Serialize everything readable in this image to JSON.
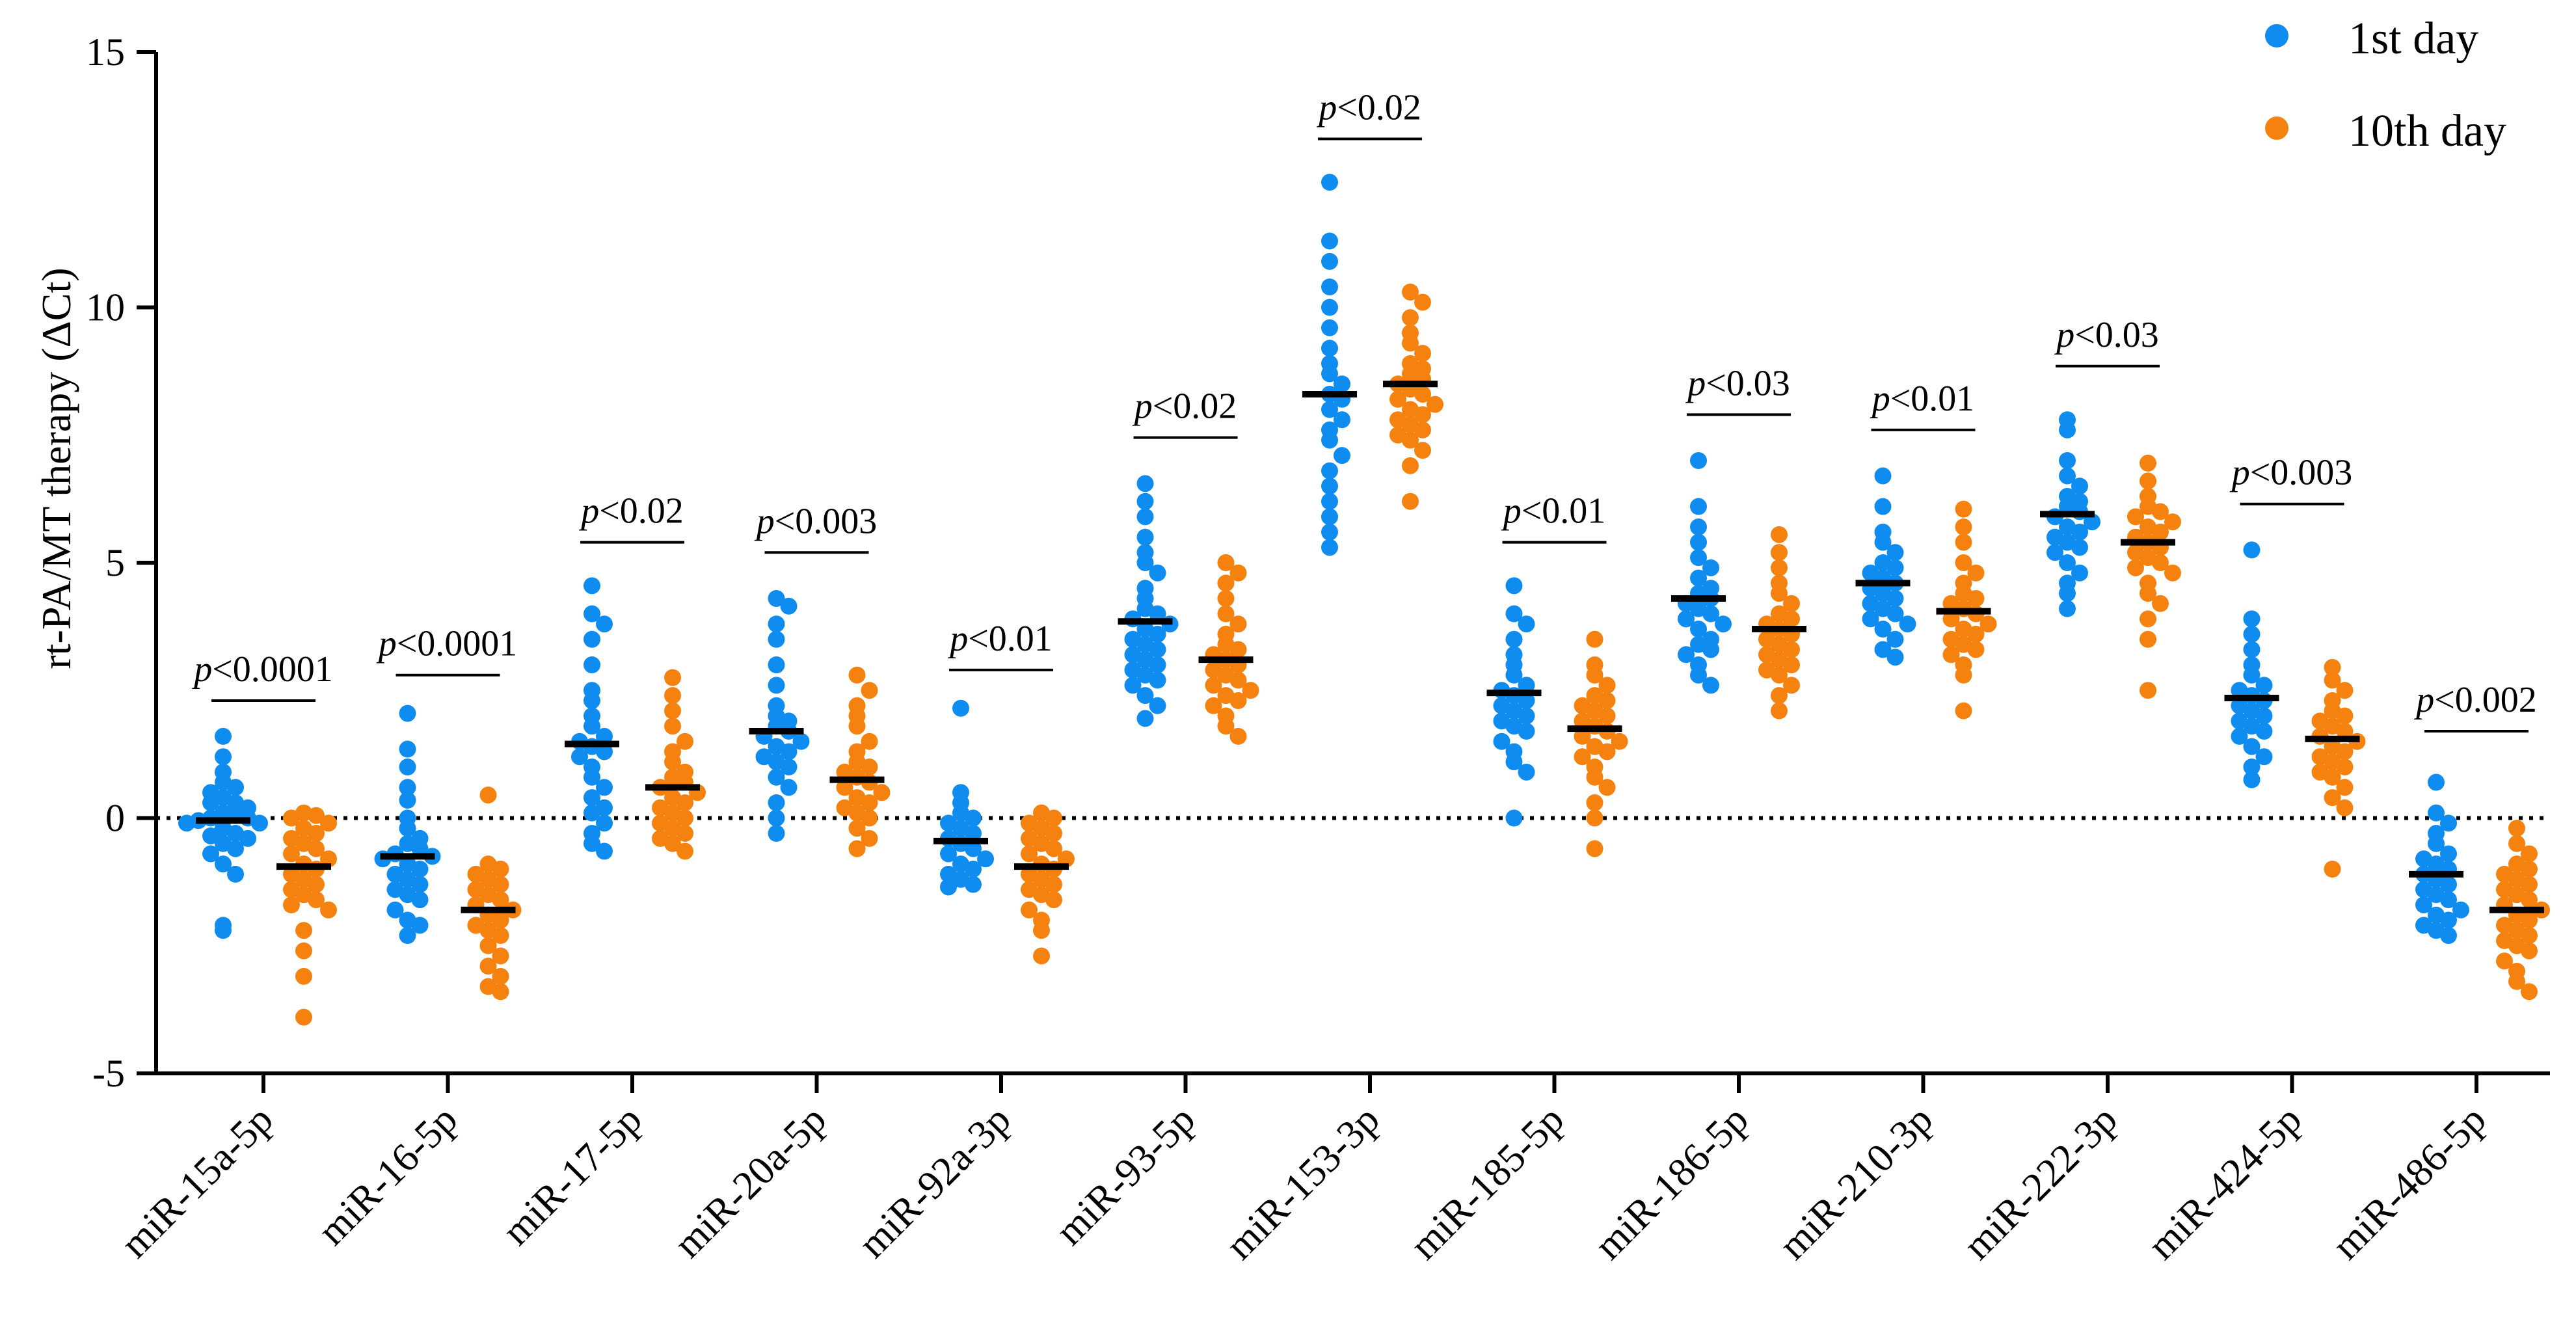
{
  "chart_data": {
    "type": "scatter",
    "ylabel": "rt-PA/MT therapy (ΔCt)",
    "ylim": [
      -5,
      15
    ],
    "yticks": [
      -5,
      0,
      5,
      10,
      15
    ],
    "ytick_labels": [
      "-5",
      "0",
      "5",
      "10",
      "15"
    ],
    "reference_line": 0,
    "legend_position": "top-right",
    "categories": [
      "miR-15a-5p",
      "miR-16-5p",
      "miR-17-5p",
      "miR-20a-5p",
      "miR-92a-3p",
      "miR-93-5p",
      "miR-153-3p",
      "miR-185-5p",
      "miR-186-5p",
      "miR-210-3p",
      "miR-222-3p",
      "miR-424-5p",
      "miR-486-5p"
    ],
    "series": [
      {
        "name": "1st day",
        "color": "#0f8cf0",
        "medians": [
          -0.05,
          -0.75,
          1.45,
          1.7,
          -0.45,
          3.85,
          8.3,
          2.45,
          4.3,
          4.6,
          5.95,
          2.35,
          -1.1
        ],
        "points": [
          [
            1.6,
            1.2,
            0.9,
            0.7,
            0.6,
            0.5,
            0.4,
            0.3,
            0.3,
            0.2,
            0.1,
            0.05,
            0.0,
            0.0,
            -0.05,
            -0.1,
            -0.1,
            -0.2,
            -0.3,
            -0.35,
            -0.4,
            -0.5,
            -0.6,
            -0.7,
            -0.9,
            -1.1,
            -2.1,
            -2.2
          ],
          [
            2.05,
            1.35,
            1.0,
            0.6,
            0.35,
            0.0,
            -0.2,
            -0.4,
            -0.5,
            -0.6,
            -0.7,
            -0.75,
            -0.8,
            -0.9,
            -1.0,
            -1.1,
            -1.2,
            -1.3,
            -1.4,
            -1.5,
            -1.6,
            -1.8,
            -2.0,
            -2.1,
            -2.3
          ],
          [
            4.55,
            4.0,
            3.8,
            3.5,
            3.0,
            2.5,
            2.3,
            2.0,
            1.8,
            1.6,
            1.5,
            1.4,
            1.3,
            1.2,
            1.0,
            0.8,
            0.6,
            0.4,
            0.2,
            0.1,
            -0.1,
            -0.3,
            -0.5,
            -0.65
          ],
          [
            4.3,
            4.15,
            3.8,
            3.5,
            3.0,
            2.6,
            2.2,
            2.0,
            1.9,
            1.8,
            1.7,
            1.6,
            1.5,
            1.4,
            1.3,
            1.2,
            1.1,
            1.0,
            0.8,
            0.6,
            0.3,
            0.0,
            -0.3
          ],
          [
            2.15,
            0.5,
            0.3,
            0.1,
            0.0,
            -0.1,
            -0.2,
            -0.3,
            -0.4,
            -0.5,
            -0.6,
            -0.7,
            -0.8,
            -0.9,
            -1.0,
            -1.1,
            -1.2,
            -1.3,
            -1.35
          ],
          [
            6.55,
            6.2,
            5.9,
            5.5,
            5.2,
            5.0,
            4.8,
            4.5,
            4.3,
            4.1,
            4.0,
            3.9,
            3.8,
            3.7,
            3.6,
            3.5,
            3.4,
            3.3,
            3.2,
            3.1,
            3.0,
            2.9,
            2.8,
            2.7,
            2.6,
            2.4,
            2.2,
            1.95
          ],
          [
            12.45,
            11.3,
            10.9,
            10.4,
            10.0,
            9.6,
            9.2,
            8.9,
            8.7,
            8.5,
            8.3,
            8.2,
            8.0,
            7.8,
            7.6,
            7.4,
            7.1,
            6.8,
            6.5,
            6.2,
            5.9,
            5.6,
            5.3
          ],
          [
            4.55,
            4.0,
            3.8,
            3.5,
            3.2,
            3.0,
            2.8,
            2.6,
            2.5,
            2.4,
            2.3,
            2.2,
            2.1,
            2.0,
            1.9,
            1.8,
            1.7,
            1.5,
            1.3,
            1.1,
            0.9,
            0.0
          ],
          [
            7.0,
            6.1,
            5.7,
            5.4,
            5.1,
            4.9,
            4.7,
            4.5,
            4.4,
            4.3,
            4.2,
            4.1,
            4.0,
            3.9,
            3.8,
            3.7,
            3.5,
            3.4,
            3.3,
            3.2,
            3.0,
            2.8,
            2.6
          ],
          [
            6.7,
            6.1,
            5.6,
            5.4,
            5.2,
            5.0,
            4.9,
            4.8,
            4.7,
            4.6,
            4.5,
            4.4,
            4.3,
            4.2,
            4.1,
            4.0,
            3.9,
            3.8,
            3.7,
            3.5,
            3.3,
            3.15
          ],
          [
            7.8,
            7.6,
            7.0,
            6.7,
            6.5,
            6.3,
            6.2,
            6.1,
            6.0,
            5.9,
            5.8,
            5.7,
            5.6,
            5.5,
            5.4,
            5.3,
            5.2,
            5.0,
            4.8,
            4.6,
            4.4,
            4.1
          ],
          [
            5.25,
            3.9,
            3.6,
            3.3,
            3.0,
            2.8,
            2.6,
            2.5,
            2.4,
            2.3,
            2.2,
            2.1,
            2.0,
            1.9,
            1.8,
            1.7,
            1.6,
            1.4,
            1.2,
            1.0,
            0.75
          ],
          [
            0.7,
            0.1,
            -0.1,
            -0.3,
            -0.5,
            -0.7,
            -0.8,
            -0.9,
            -1.0,
            -1.1,
            -1.2,
            -1.3,
            -1.4,
            -1.5,
            -1.6,
            -1.7,
            -1.8,
            -1.9,
            -2.0,
            -2.1,
            -2.2,
            -2.3
          ]
        ]
      },
      {
        "name": "10th day",
        "color": "#f5820f",
        "medians": [
          -0.95,
          -1.8,
          0.6,
          0.75,
          -0.95,
          3.1,
          8.5,
          1.75,
          3.7,
          4.05,
          5.4,
          1.55,
          -1.8
        ],
        "points": [
          [
            0.1,
            0.05,
            0.0,
            -0.1,
            -0.2,
            -0.3,
            -0.4,
            -0.5,
            -0.6,
            -0.7,
            -0.8,
            -0.9,
            -1.0,
            -1.1,
            -1.2,
            -1.3,
            -1.4,
            -1.5,
            -1.6,
            -1.7,
            -1.8,
            -2.2,
            -2.6,
            -3.1,
            -3.9
          ],
          [
            0.45,
            -0.9,
            -1.0,
            -1.1,
            -1.2,
            -1.3,
            -1.4,
            -1.5,
            -1.6,
            -1.7,
            -1.8,
            -1.9,
            -2.0,
            -2.1,
            -2.2,
            -2.3,
            -2.5,
            -2.7,
            -2.9,
            -3.1,
            -3.3,
            -3.4
          ],
          [
            2.75,
            2.4,
            2.1,
            1.8,
            1.5,
            1.3,
            1.1,
            0.9,
            0.8,
            0.7,
            0.6,
            0.5,
            0.4,
            0.3,
            0.2,
            0.1,
            0.0,
            -0.1,
            -0.2,
            -0.3,
            -0.4,
            -0.5,
            -0.65
          ],
          [
            2.8,
            2.5,
            2.2,
            2.0,
            1.8,
            1.5,
            1.3,
            1.1,
            1.0,
            0.9,
            0.8,
            0.7,
            0.6,
            0.5,
            0.4,
            0.3,
            0.2,
            0.1,
            0.0,
            -0.2,
            -0.4,
            -0.6
          ],
          [
            0.1,
            0.0,
            -0.1,
            -0.2,
            -0.3,
            -0.4,
            -0.5,
            -0.6,
            -0.7,
            -0.8,
            -0.9,
            -1.0,
            -1.1,
            -1.2,
            -1.3,
            -1.4,
            -1.5,
            -1.6,
            -1.8,
            -2.0,
            -2.2,
            -2.7
          ],
          [
            5.0,
            4.8,
            4.6,
            4.3,
            4.0,
            3.8,
            3.6,
            3.4,
            3.3,
            3.2,
            3.1,
            3.0,
            2.9,
            2.8,
            2.7,
            2.6,
            2.5,
            2.4,
            2.3,
            2.2,
            2.0,
            1.8,
            1.6
          ],
          [
            10.3,
            10.1,
            9.8,
            9.5,
            9.3,
            9.1,
            8.9,
            8.8,
            8.7,
            8.6,
            8.5,
            8.4,
            8.3,
            8.2,
            8.1,
            8.0,
            7.9,
            7.8,
            7.7,
            7.6,
            7.5,
            7.4,
            7.2,
            6.9,
            6.2
          ],
          [
            3.5,
            3.0,
            2.8,
            2.6,
            2.4,
            2.3,
            2.2,
            2.1,
            2.0,
            1.9,
            1.8,
            1.7,
            1.6,
            1.5,
            1.4,
            1.3,
            1.2,
            1.0,
            0.8,
            0.6,
            0.3,
            0.0,
            -0.6
          ],
          [
            5.55,
            5.2,
            4.9,
            4.6,
            4.4,
            4.2,
            4.0,
            3.9,
            3.8,
            3.7,
            3.6,
            3.5,
            3.4,
            3.3,
            3.2,
            3.1,
            3.0,
            2.9,
            2.8,
            2.6,
            2.4,
            2.1
          ],
          [
            6.05,
            5.7,
            5.4,
            5.0,
            4.8,
            4.6,
            4.4,
            4.3,
            4.2,
            4.1,
            4.0,
            3.9,
            3.8,
            3.7,
            3.6,
            3.5,
            3.4,
            3.3,
            3.2,
            3.0,
            2.8,
            2.1
          ],
          [
            6.95,
            6.6,
            6.3,
            6.1,
            6.0,
            5.9,
            5.8,
            5.7,
            5.6,
            5.5,
            5.4,
            5.3,
            5.2,
            5.1,
            5.0,
            4.9,
            4.8,
            4.6,
            4.4,
            4.2,
            3.9,
            3.5,
            2.5
          ],
          [
            2.95,
            2.7,
            2.5,
            2.3,
            2.1,
            2.0,
            1.9,
            1.8,
            1.7,
            1.6,
            1.5,
            1.4,
            1.3,
            1.2,
            1.1,
            1.0,
            0.9,
            0.8,
            0.6,
            0.4,
            0.2,
            -1.0
          ],
          [
            -0.2,
            -0.5,
            -0.7,
            -0.9,
            -1.0,
            -1.1,
            -1.2,
            -1.3,
            -1.4,
            -1.5,
            -1.6,
            -1.7,
            -1.8,
            -1.9,
            -2.0,
            -2.1,
            -2.2,
            -2.3,
            -2.4,
            -2.5,
            -2.6,
            -2.8,
            -3.0,
            -3.2,
            -3.4
          ]
        ]
      }
    ],
    "annotations": [
      {
        "label": "p<0.0001",
        "p": "p",
        "rest": "<0.0001",
        "y": 2.3
      },
      {
        "label": "p<0.0001",
        "p": "p",
        "rest": "<0.0001",
        "y": 2.8
      },
      {
        "label": "p<0.02",
        "p": "p",
        "rest": "<0.02",
        "y": 5.4
      },
      {
        "label": "p<0.003",
        "p": "p",
        "rest": "<0.003",
        "y": 5.2
      },
      {
        "label": "p<0.01",
        "p": "p",
        "rest": "<0.01",
        "y": 2.9
      },
      {
        "label": "p<0.02",
        "p": "p",
        "rest": "<0.02",
        "y": 7.45
      },
      {
        "label": "p<0.02",
        "p": "p",
        "rest": "<0.02",
        "y": 13.3
      },
      {
        "label": "p<0.01",
        "p": "p",
        "rest": "<0.01",
        "y": 5.4
      },
      {
        "label": "p<0.03",
        "p": "p",
        "rest": "<0.03",
        "y": 7.9
      },
      {
        "label": "p<0.01",
        "p": "p",
        "rest": "<0.01",
        "y": 7.6
      },
      {
        "label": "p<0.03",
        "p": "p",
        "rest": "<0.03",
        "y": 8.85
      },
      {
        "label": "p<0.003",
        "p": "p",
        "rest": "<0.003",
        "y": 6.15
      },
      {
        "label": "p<0.002",
        "p": "p",
        "rest": "<0.002",
        "y": 1.7
      }
    ]
  }
}
